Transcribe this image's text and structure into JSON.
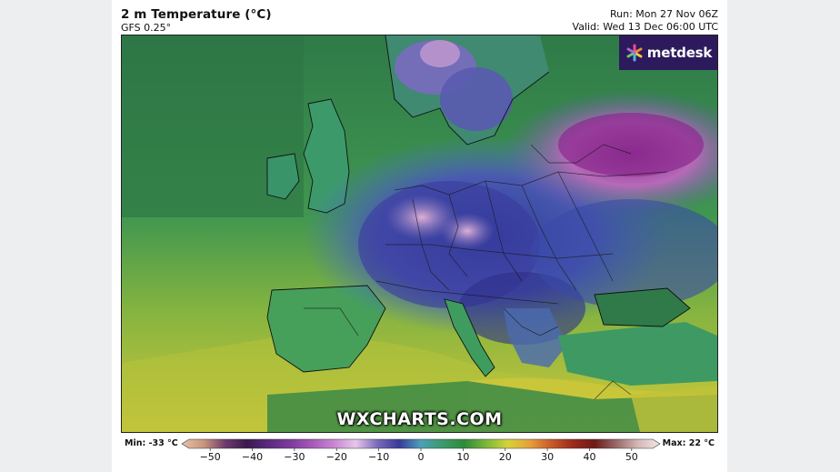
{
  "header": {
    "title": "2 m Temperature (°C)",
    "model": "GFS 0.25°",
    "run": "Run: Mon 27 Nov 06Z",
    "valid": "Valid: Wed 13 Dec 06:00 UTC"
  },
  "brand": {
    "name": "metdesk"
  },
  "watermark": "WXCHARTS.COM",
  "legend": {
    "min_label": "Min: -33 °C",
    "max_label": "Max: 22 °C",
    "ticks": [
      "−50",
      "−40",
      "−30",
      "−20",
      "−10",
      "0",
      "10",
      "20",
      "30",
      "40",
      "50"
    ],
    "tick_values": [
      -50,
      -40,
      -30,
      -20,
      -10,
      0,
      10,
      20,
      30,
      40,
      50
    ],
    "stops": [
      {
        "v": -55,
        "c": "#e6c2a8"
      },
      {
        "v": -50,
        "c": "#c9967c"
      },
      {
        "v": -45,
        "c": "#6e3a6e"
      },
      {
        "v": -40,
        "c": "#3a1a4e"
      },
      {
        "v": -35,
        "c": "#5a2a7e"
      },
      {
        "v": -30,
        "c": "#7e3a9e"
      },
      {
        "v": -25,
        "c": "#a65ab8"
      },
      {
        "v": -20,
        "c": "#c886d2"
      },
      {
        "v": -15,
        "c": "#e6c6ea"
      },
      {
        "v": -10,
        "c": "#7a6ab8"
      },
      {
        "v": -5,
        "c": "#3a3a9a"
      },
      {
        "v": 0,
        "c": "#4aa0b8"
      },
      {
        "v": 5,
        "c": "#3c9a6a"
      },
      {
        "v": 10,
        "c": "#2e8a3a"
      },
      {
        "v": 15,
        "c": "#7ab83a"
      },
      {
        "v": 20,
        "c": "#d6d23a"
      },
      {
        "v": 25,
        "c": "#e6a03a"
      },
      {
        "v": 30,
        "c": "#c85a2a"
      },
      {
        "v": 35,
        "c": "#9a2a1a"
      },
      {
        "v": 40,
        "c": "#6e1a1a"
      },
      {
        "v": 45,
        "c": "#9a6a6a"
      },
      {
        "v": 50,
        "c": "#d6b8b8"
      },
      {
        "v": 55,
        "c": "#f2e6e6"
      }
    ]
  },
  "colors": {
    "ocean_west": "#2f7f4a",
    "ocean_south": "#c8c23a",
    "cold_core": "#8e3a9e",
    "brand_bg": "#2d1a5c"
  }
}
